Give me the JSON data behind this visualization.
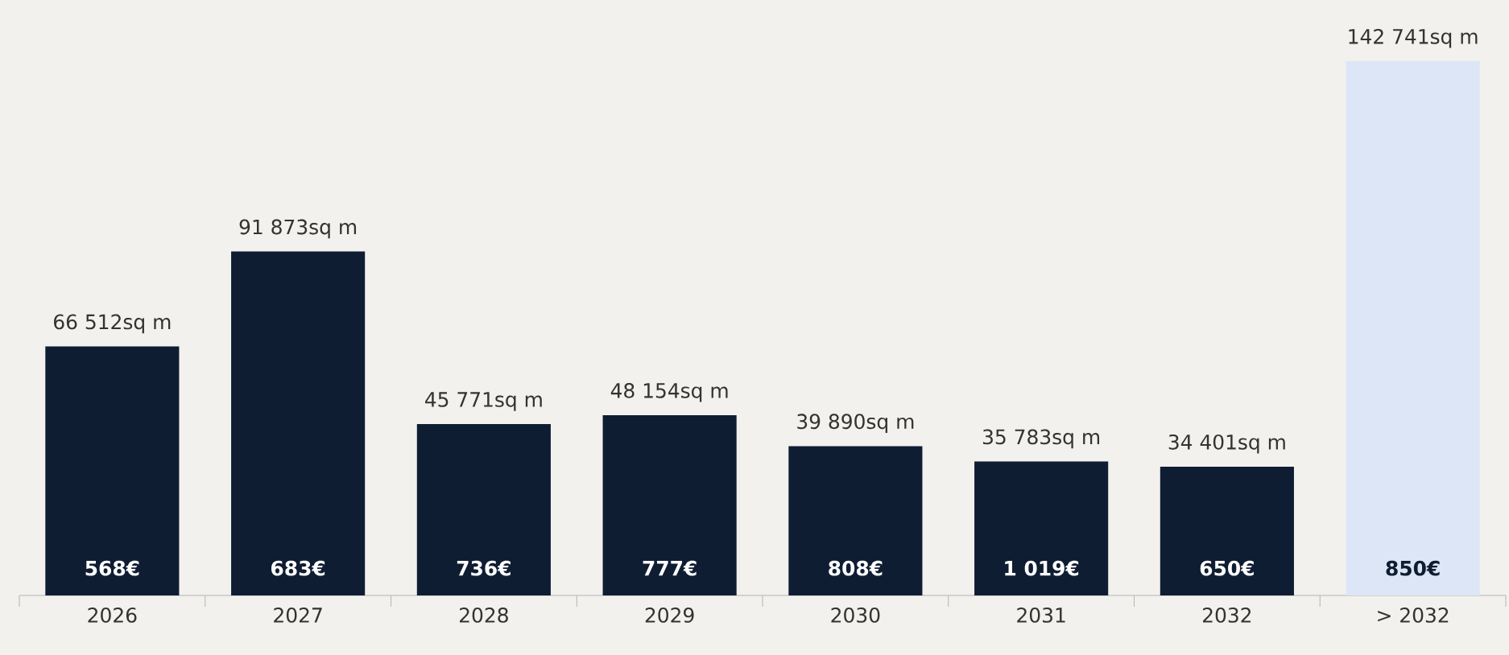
{
  "chart_data": {
    "type": "bar",
    "categories": [
      "2026",
      "2027",
      "2028",
      "2029",
      "2030",
      "2031",
      "2032",
      "> 2032"
    ],
    "values": [
      66512,
      91873,
      45771,
      48154,
      39890,
      35783,
      34401,
      142741
    ],
    "value_labels": [
      "66 512sq m",
      "91 873sq m",
      "45 771sq m",
      "48 154sq m",
      "39 890sq m",
      "35 783sq m",
      "34 401sq m",
      "142 741sq m"
    ],
    "colors": [
      "#0f1d33",
      "#0f1d33",
      "#0f1d33",
      "#0f1d33",
      "#0f1d33",
      "#0f1d33",
      "#0f1d33",
      "#dce6f6"
    ],
    "annotations": [
      "568€",
      "683€",
      "736€",
      "777€",
      "808€",
      "1 019€",
      "650€",
      "850€"
    ]
  }
}
